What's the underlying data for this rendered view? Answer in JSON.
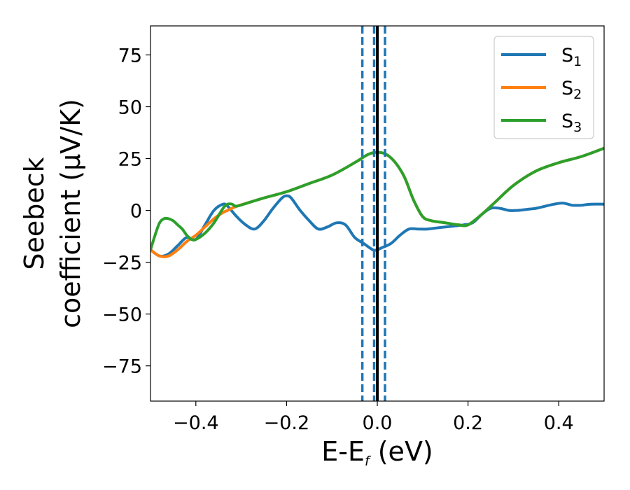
{
  "chart_data": {
    "type": "line",
    "xlabel": "E-E",
    "xlabel_sub": "f",
    "xlabel_unit": " (eV)",
    "ylabel_line1": "Seebeck",
    "ylabel_line2": "coefficient  (μV/K)",
    "xlim": [
      -0.5,
      0.5
    ],
    "ylim": [
      -92,
      89
    ],
    "x_ticks": [
      -0.4,
      -0.2,
      0.0,
      0.2,
      0.4
    ],
    "x_tick_labels": [
      "−0.4",
      "−0.2",
      "0.0",
      "0.2",
      "0.4"
    ],
    "y_ticks": [
      75,
      50,
      25,
      0,
      -25,
      -50,
      -75
    ],
    "y_tick_labels": [
      "75",
      "50",
      "25",
      "0",
      "−25",
      "−50",
      "−75"
    ],
    "grid": false,
    "legend_position": "top-right",
    "vertical_lines": [
      {
        "x": -0.033,
        "style": "dashed",
        "color": "#1f77b4"
      },
      {
        "x": -0.007,
        "style": "dashed",
        "color": "#1f77b4"
      },
      {
        "x": 0.017,
        "style": "dashed",
        "color": "#1f77b4"
      },
      {
        "x": 0.0,
        "style": "solid",
        "color": "#000000"
      }
    ],
    "series": [
      {
        "name": "S",
        "sub": "1",
        "color": "#1f77b4",
        "x": [
          -0.5,
          -0.48,
          -0.46,
          -0.44,
          -0.42,
          -0.4,
          -0.38,
          -0.36,
          -0.34,
          -0.33,
          -0.31,
          -0.29,
          -0.27,
          -0.25,
          -0.23,
          -0.21,
          -0.2,
          -0.19,
          -0.17,
          -0.15,
          -0.13,
          -0.11,
          -0.09,
          -0.07,
          -0.05,
          -0.03,
          -0.01,
          0.0,
          0.01,
          0.03,
          0.05,
          0.07,
          0.09,
          0.11,
          0.13,
          0.15,
          0.17,
          0.19,
          0.21,
          0.23,
          0.25,
          0.27,
          0.29,
          0.31,
          0.33,
          0.35,
          0.37,
          0.39,
          0.41,
          0.43,
          0.45,
          0.47,
          0.5
        ],
        "values": [
          -19,
          -22,
          -21,
          -17,
          -13,
          -14,
          -7,
          0,
          3,
          2,
          -3,
          -7,
          -9,
          -5,
          1,
          6,
          7,
          6,
          0,
          -5,
          -9,
          -8,
          -6,
          -7,
          -13,
          -16,
          -19,
          -19,
          -18,
          -16,
          -12,
          -9,
          -9,
          -9,
          -8.5,
          -8,
          -7.5,
          -7,
          -6,
          -2,
          1,
          1,
          0,
          0,
          0.5,
          1,
          2,
          3,
          3.5,
          2.5,
          2.5,
          3,
          3
        ]
      },
      {
        "name": "S",
        "sub": "2",
        "color": "#ff7f0e",
        "x": [
          -0.5,
          -0.48,
          -0.46,
          -0.44,
          -0.42,
          -0.4,
          -0.38,
          -0.36,
          -0.34,
          -0.33,
          -0.31,
          -0.28,
          -0.25,
          -0.2,
          -0.15,
          -0.1,
          -0.05,
          -0.02,
          0.0,
          0.02,
          0.04,
          0.06,
          0.08,
          0.1,
          0.12,
          0.15,
          0.18,
          0.2,
          0.23,
          0.26,
          0.3,
          0.35,
          0.4,
          0.45,
          0.5
        ],
        "values": [
          -19,
          -22,
          -22,
          -19,
          -15,
          -12,
          -8,
          -4,
          -1,
          0,
          2,
          4,
          6,
          9,
          13,
          17,
          23,
          27,
          28,
          27,
          23,
          16,
          5,
          -3,
          -5,
          -6,
          -7,
          -7,
          -2,
          4,
          12,
          19,
          23,
          26,
          30
        ]
      },
      {
        "name": "S",
        "sub": "3",
        "color": "#2ca02c",
        "x": [
          -0.5,
          -0.49,
          -0.48,
          -0.47,
          -0.46,
          -0.45,
          -0.44,
          -0.43,
          -0.42,
          -0.41,
          -0.4,
          -0.38,
          -0.36,
          -0.34,
          -0.33,
          -0.32,
          -0.31,
          -0.28,
          -0.25,
          -0.2,
          -0.15,
          -0.1,
          -0.05,
          -0.02,
          0.0,
          0.02,
          0.04,
          0.06,
          0.08,
          0.1,
          0.12,
          0.15,
          0.18,
          0.2,
          0.23,
          0.26,
          0.3,
          0.35,
          0.4,
          0.45,
          0.5
        ],
        "values": [
          -19,
          -12,
          -6,
          -4,
          -4,
          -5,
          -7,
          -9,
          -12,
          -14,
          -14,
          -11,
          -6,
          1,
          3,
          3,
          2,
          4,
          6,
          9,
          13,
          17,
          23,
          27,
          28,
          27,
          23,
          16,
          5,
          -3,
          -5,
          -6,
          -7,
          -7,
          -2,
          4,
          12,
          19,
          23,
          26,
          30
        ]
      }
    ]
  }
}
